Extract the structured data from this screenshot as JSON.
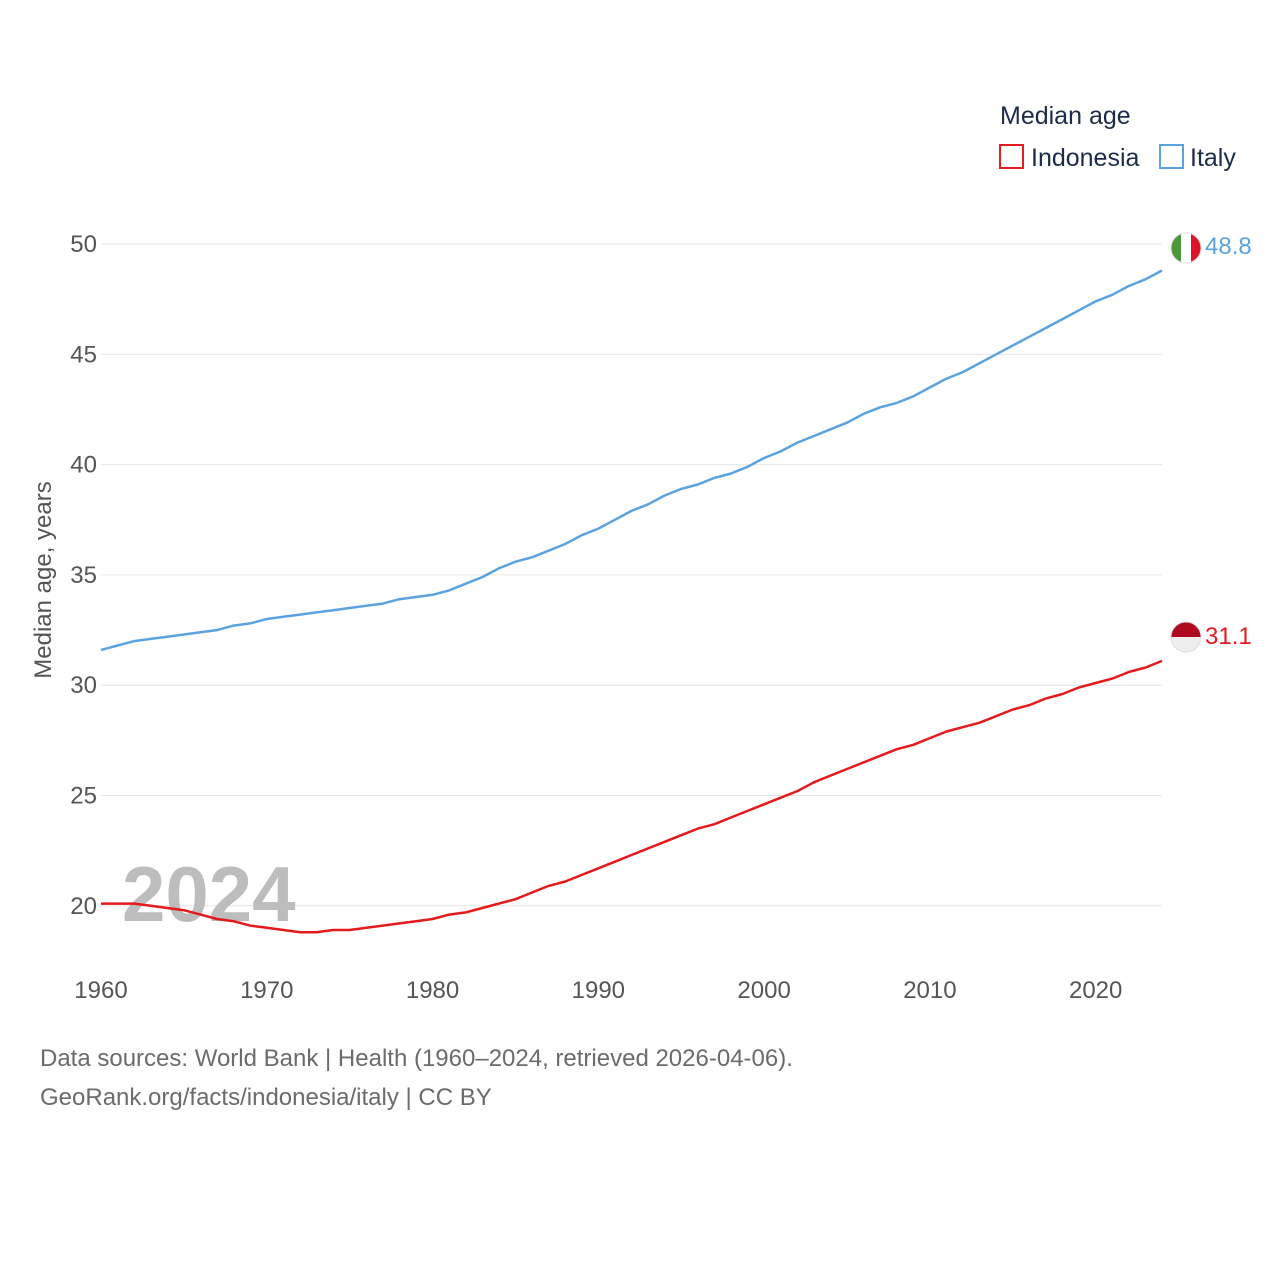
{
  "chart_data": {
    "type": "line",
    "title": "",
    "legend_title": "Median age",
    "legend_position": "top-right",
    "ylabel": "Median age, years",
    "xlabel": "",
    "watermark_year": "2024",
    "xlim": [
      1960,
      2024
    ],
    "ylim": [
      16,
      51
    ],
    "x_ticks": [
      1960,
      1970,
      1980,
      1990,
      2000,
      2010,
      2020
    ],
    "y_ticks": [
      20,
      25,
      30,
      35,
      40,
      45,
      50
    ],
    "grid": true,
    "x": [
      1960,
      1961,
      1962,
      1963,
      1964,
      1965,
      1966,
      1967,
      1968,
      1969,
      1970,
      1971,
      1972,
      1973,
      1974,
      1975,
      1976,
      1977,
      1978,
      1979,
      1980,
      1981,
      1982,
      1983,
      1984,
      1985,
      1986,
      1987,
      1988,
      1989,
      1990,
      1991,
      1992,
      1993,
      1994,
      1995,
      1996,
      1997,
      1998,
      1999,
      2000,
      2001,
      2002,
      2003,
      2004,
      2005,
      2006,
      2007,
      2008,
      2009,
      2010,
      2011,
      2012,
      2013,
      2014,
      2015,
      2016,
      2017,
      2018,
      2019,
      2020,
      2021,
      2022,
      2023,
      2024
    ],
    "series": [
      {
        "name": "Indonesia",
        "color": "#e41a1c",
        "end_label": "31.1",
        "values": [
          20.1,
          20.1,
          20.1,
          20.0,
          19.9,
          19.8,
          19.6,
          19.4,
          19.3,
          19.1,
          19.0,
          18.9,
          18.8,
          18.8,
          18.9,
          18.9,
          19.0,
          19.1,
          19.2,
          19.3,
          19.4,
          19.6,
          19.7,
          19.9,
          20.1,
          20.3,
          20.6,
          20.9,
          21.1,
          21.4,
          21.7,
          22.0,
          22.3,
          22.6,
          22.9,
          23.2,
          23.5,
          23.7,
          24.0,
          24.3,
          24.6,
          24.9,
          25.2,
          25.6,
          25.9,
          26.2,
          26.5,
          26.8,
          27.1,
          27.3,
          27.6,
          27.9,
          28.1,
          28.3,
          28.6,
          28.9,
          29.1,
          29.4,
          29.6,
          29.9,
          30.1,
          30.3,
          30.6,
          30.8,
          31.1
        ]
      },
      {
        "name": "Italy",
        "color": "#5ba3e0",
        "end_label": "48.8",
        "values": [
          31.6,
          31.8,
          32.0,
          32.1,
          32.2,
          32.3,
          32.4,
          32.5,
          32.7,
          32.8,
          33.0,
          33.1,
          33.2,
          33.3,
          33.4,
          33.5,
          33.6,
          33.7,
          33.9,
          34.0,
          34.1,
          34.3,
          34.6,
          34.9,
          35.3,
          35.6,
          35.8,
          36.1,
          36.4,
          36.8,
          37.1,
          37.5,
          37.9,
          38.2,
          38.6,
          38.9,
          39.1,
          39.4,
          39.6,
          39.9,
          40.3,
          40.6,
          41.0,
          41.3,
          41.6,
          41.9,
          42.3,
          42.6,
          42.8,
          43.1,
          43.5,
          43.9,
          44.2,
          44.6,
          45.0,
          45.4,
          45.8,
          46.2,
          46.6,
          47.0,
          47.4,
          47.7,
          48.1,
          48.4,
          48.8
        ]
      }
    ]
  },
  "footer": {
    "source_line": "Data sources: World Bank | Health (1960–2024, retrieved 2026-04-06).",
    "url_line": "GeoRank.org/facts/indonesia/italy | CC BY"
  }
}
